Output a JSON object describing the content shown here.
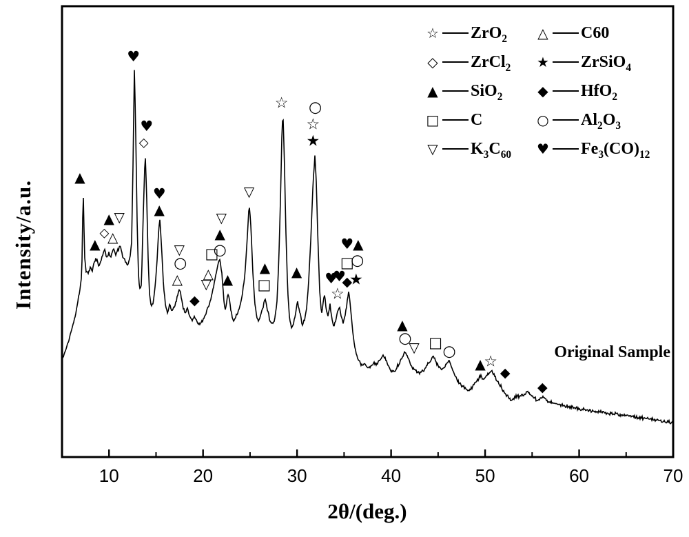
{
  "figure": {
    "background": "#ffffff",
    "line_color": "#000000",
    "annotation": "Original Sample",
    "xlabel": "2θ/(deg.)",
    "ylabel": "Intensity/a.u."
  },
  "chart_data": {
    "type": "line",
    "title": "",
    "xlabel": "2θ/(deg.)",
    "ylabel": "Intensity/a.u.",
    "annotation": "Original Sample",
    "xlim": [
      5,
      70
    ],
    "ylim": [
      0,
      654
    ],
    "x_ticks_major": [
      10,
      20,
      30,
      40,
      50,
      60,
      70
    ],
    "x_ticks_minor": [
      15,
      25,
      35,
      45,
      55,
      65
    ],
    "grid": false,
    "legend_position": "top-right-inside",
    "line_color": "#000000",
    "symbols": {
      "open-star": "☆",
      "filled-star": "★",
      "open-diamond": "◇",
      "filled-diamond": "◆",
      "filled-triangle-up": "▲",
      "open-triangle-up": "△",
      "open-triangle-down": "▽",
      "open-square": "□",
      "open-circle": "○",
      "filled-heart": "♥"
    },
    "legend": [
      {
        "symbol": "open-star",
        "label": "ZrO_2"
      },
      {
        "symbol": "open-triangle-up",
        "label": "C60"
      },
      {
        "symbol": "open-diamond",
        "label": "ZrCl_2"
      },
      {
        "symbol": "filled-star",
        "label": "ZrSiO_4"
      },
      {
        "symbol": "filled-triangle-up",
        "label": "SiO_2"
      },
      {
        "symbol": "filled-diamond",
        "label": "HfO_2"
      },
      {
        "symbol": "open-square",
        "label": "C"
      },
      {
        "symbol": "open-circle",
        "label": "Al_2O_3"
      },
      {
        "symbol": "open-triangle-down",
        "label": "K_3C_60"
      },
      {
        "symbol": "filled-heart",
        "label": "Fe_3(CO)_12"
      }
    ],
    "peak_markers": [
      {
        "symbol": "filled-triangle-up",
        "x": 6.9,
        "y": 406
      },
      {
        "symbol": "filled-triangle-up",
        "x": 8.5,
        "y": 309
      },
      {
        "symbol": "open-diamond",
        "x": 9.5,
        "y": 325
      },
      {
        "symbol": "filled-triangle-up",
        "x": 10.0,
        "y": 346
      },
      {
        "symbol": "open-triangle-up",
        "x": 10.4,
        "y": 319
      },
      {
        "symbol": "open-triangle-down",
        "x": 11.1,
        "y": 348
      },
      {
        "symbol": "filled-heart",
        "x": 12.6,
        "y": 581
      },
      {
        "symbol": "open-diamond",
        "x": 13.7,
        "y": 456
      },
      {
        "symbol": "filled-heart",
        "x": 14.0,
        "y": 480
      },
      {
        "symbol": "filled-heart",
        "x": 15.35,
        "y": 382
      },
      {
        "symbol": "filled-triangle-up",
        "x": 15.35,
        "y": 359
      },
      {
        "symbol": "open-triangle-up",
        "x": 17.26,
        "y": 258
      },
      {
        "symbol": "open-triangle-down",
        "x": 17.48,
        "y": 301
      },
      {
        "symbol": "open-circle",
        "x": 17.58,
        "y": 281
      },
      {
        "symbol": "filled-diamond",
        "x": 19.1,
        "y": 227
      },
      {
        "symbol": "open-triangle-down",
        "x": 20.34,
        "y": 251
      },
      {
        "symbol": "open-triangle-up",
        "x": 20.56,
        "y": 266
      },
      {
        "symbol": "open-square",
        "x": 20.93,
        "y": 295
      },
      {
        "symbol": "open-circle",
        "x": 21.8,
        "y": 300
      },
      {
        "symbol": "filled-triangle-up",
        "x": 21.8,
        "y": 324
      },
      {
        "symbol": "open-triangle-down",
        "x": 21.95,
        "y": 347
      },
      {
        "symbol": "filled-triangle-up",
        "x": 22.62,
        "y": 258
      },
      {
        "symbol": "open-triangle-down",
        "x": 24.9,
        "y": 385
      },
      {
        "symbol": "filled-triangle-up",
        "x": 26.58,
        "y": 275
      },
      {
        "symbol": "open-square",
        "x": 26.5,
        "y": 250
      },
      {
        "symbol": "open-star",
        "x": 28.35,
        "y": 513
      },
      {
        "symbol": "filled-triangle-up",
        "x": 29.96,
        "y": 269
      },
      {
        "symbol": "open-circle",
        "x": 31.94,
        "y": 507
      },
      {
        "symbol": "open-star",
        "x": 31.7,
        "y": 482
      },
      {
        "symbol": "filled-star",
        "x": 31.7,
        "y": 458
      },
      {
        "symbol": "filled-heart",
        "x": 33.63,
        "y": 259
      },
      {
        "symbol": "filled-heart",
        "x": 34.5,
        "y": 262
      },
      {
        "symbol": "open-star",
        "x": 34.3,
        "y": 236
      },
      {
        "symbol": "filled-diamond",
        "x": 35.32,
        "y": 254
      },
      {
        "symbol": "filled-star",
        "x": 36.28,
        "y": 257
      },
      {
        "symbol": "filled-heart",
        "x": 35.32,
        "y": 309
      },
      {
        "symbol": "filled-triangle-up",
        "x": 36.5,
        "y": 309
      },
      {
        "symbol": "open-square",
        "x": 35.32,
        "y": 282
      },
      {
        "symbol": "open-circle",
        "x": 36.42,
        "y": 285
      },
      {
        "symbol": "filled-triangle-up",
        "x": 41.2,
        "y": 192
      },
      {
        "symbol": "open-circle",
        "x": 41.49,
        "y": 172
      },
      {
        "symbol": "open-triangle-down",
        "x": 42.45,
        "y": 159
      },
      {
        "symbol": "open-square",
        "x": 44.72,
        "y": 166
      },
      {
        "symbol": "open-circle",
        "x": 46.19,
        "y": 153
      },
      {
        "symbol": "filled-triangle-up",
        "x": 49.49,
        "y": 135
      },
      {
        "symbol": "open-star",
        "x": 50.59,
        "y": 138
      },
      {
        "symbol": "filled-diamond",
        "x": 52.13,
        "y": 122
      },
      {
        "symbol": "filled-diamond",
        "x": 56.1,
        "y": 101
      }
    ],
    "curve_points": [
      [
        5.0,
        140
      ],
      [
        5.3,
        152
      ],
      [
        5.6,
        164
      ],
      [
        5.9,
        179
      ],
      [
        6.2,
        194
      ],
      [
        6.5,
        212
      ],
      [
        6.8,
        234
      ],
      [
        7.0,
        254
      ],
      [
        7.1,
        264
      ],
      [
        7.25,
        390
      ],
      [
        7.4,
        292
      ],
      [
        7.55,
        270
      ],
      [
        7.8,
        266
      ],
      [
        8.0,
        274
      ],
      [
        8.2,
        270
      ],
      [
        8.45,
        284
      ],
      [
        8.7,
        288
      ],
      [
        8.9,
        276
      ],
      [
        9.1,
        284
      ],
      [
        9.35,
        294
      ],
      [
        9.55,
        302
      ],
      [
        9.75,
        288
      ],
      [
        10.0,
        296
      ],
      [
        10.2,
        290
      ],
      [
        10.45,
        304
      ],
      [
        10.7,
        294
      ],
      [
        10.95,
        300
      ],
      [
        11.2,
        306
      ],
      [
        11.45,
        292
      ],
      [
        11.7,
        285
      ],
      [
        11.95,
        279
      ],
      [
        12.2,
        287
      ],
      [
        12.4,
        310
      ],
      [
        12.55,
        422
      ],
      [
        12.7,
        567
      ],
      [
        12.85,
        462
      ],
      [
        13.0,
        332
      ],
      [
        13.15,
        257
      ],
      [
        13.3,
        242
      ],
      [
        13.45,
        250
      ],
      [
        13.6,
        332
      ],
      [
        13.75,
        402
      ],
      [
        13.85,
        439
      ],
      [
        14.0,
        382
      ],
      [
        14.15,
        292
      ],
      [
        14.3,
        237
      ],
      [
        14.5,
        220
      ],
      [
        14.7,
        224
      ],
      [
        14.9,
        247
      ],
      [
        15.1,
        282
      ],
      [
        15.25,
        322
      ],
      [
        15.4,
        346
      ],
      [
        15.6,
        302
      ],
      [
        15.8,
        247
      ],
      [
        16.0,
        222
      ],
      [
        16.2,
        210
      ],
      [
        16.45,
        220
      ],
      [
        16.7,
        212
      ],
      [
        16.9,
        218
      ],
      [
        17.1,
        224
      ],
      [
        17.3,
        234
      ],
      [
        17.5,
        246
      ],
      [
        17.7,
        230
      ],
      [
        17.9,
        216
      ],
      [
        18.1,
        210
      ],
      [
        18.35,
        216
      ],
      [
        18.6,
        204
      ],
      [
        18.85,
        198
      ],
      [
        19.1,
        204
      ],
      [
        19.35,
        196
      ],
      [
        19.6,
        192
      ],
      [
        19.85,
        196
      ],
      [
        20.1,
        200
      ],
      [
        20.35,
        210
      ],
      [
        20.6,
        218
      ],
      [
        20.85,
        232
      ],
      [
        21.1,
        247
      ],
      [
        21.35,
        264
      ],
      [
        21.6,
        280
      ],
      [
        21.8,
        286
      ],
      [
        22.0,
        266
      ],
      [
        22.2,
        232
      ],
      [
        22.35,
        212
      ],
      [
        22.5,
        222
      ],
      [
        22.65,
        237
      ],
      [
        22.8,
        230
      ],
      [
        23.0,
        210
      ],
      [
        23.2,
        197
      ],
      [
        23.45,
        202
      ],
      [
        23.7,
        210
      ],
      [
        23.95,
        220
      ],
      [
        24.2,
        237
      ],
      [
        24.45,
        264
      ],
      [
        24.7,
        317
      ],
      [
        24.9,
        367
      ],
      [
        25.1,
        332
      ],
      [
        25.3,
        267
      ],
      [
        25.5,
        224
      ],
      [
        25.7,
        204
      ],
      [
        25.9,
        198
      ],
      [
        26.1,
        206
      ],
      [
        26.35,
        216
      ],
      [
        26.6,
        230
      ],
      [
        26.85,
        214
      ],
      [
        27.1,
        198
      ],
      [
        27.35,
        192
      ],
      [
        27.6,
        200
      ],
      [
        27.85,
        222
      ],
      [
        28.05,
        282
      ],
      [
        28.25,
        382
      ],
      [
        28.4,
        477
      ],
      [
        28.5,
        499
      ],
      [
        28.65,
        432
      ],
      [
        28.8,
        332
      ],
      [
        29.0,
        242
      ],
      [
        29.2,
        200
      ],
      [
        29.4,
        186
      ],
      [
        29.6,
        192
      ],
      [
        29.8,
        204
      ],
      [
        30.05,
        226
      ],
      [
        30.3,
        210
      ],
      [
        30.55,
        192
      ],
      [
        30.8,
        200
      ],
      [
        31.0,
        214
      ],
      [
        31.2,
        247
      ],
      [
        31.45,
        312
      ],
      [
        31.7,
        397
      ],
      [
        31.9,
        438
      ],
      [
        32.05,
        397
      ],
      [
        32.2,
        322
      ],
      [
        32.4,
        242
      ],
      [
        32.6,
        207
      ],
      [
        32.8,
        227
      ],
      [
        32.95,
        234
      ],
      [
        33.1,
        214
      ],
      [
        33.3,
        204
      ],
      [
        33.5,
        224
      ],
      [
        33.7,
        200
      ],
      [
        33.9,
        190
      ],
      [
        34.1,
        198
      ],
      [
        34.3,
        210
      ],
      [
        34.5,
        218
      ],
      [
        34.7,
        204
      ],
      [
        34.9,
        194
      ],
      [
        35.1,
        204
      ],
      [
        35.3,
        222
      ],
      [
        35.5,
        240
      ],
      [
        35.7,
        217
      ],
      [
        35.9,
        184
      ],
      [
        36.1,
        162
      ],
      [
        36.35,
        147
      ],
      [
        36.6,
        139
      ],
      [
        36.9,
        132
      ],
      [
        37.2,
        135
      ],
      [
        37.5,
        129
      ],
      [
        37.8,
        132
      ],
      [
        38.1,
        136
      ],
      [
        38.4,
        134
      ],
      [
        38.7,
        140
      ],
      [
        39.0,
        144
      ],
      [
        39.2,
        147
      ],
      [
        39.45,
        140
      ],
      [
        39.7,
        132
      ],
      [
        40.0,
        126
      ],
      [
        40.3,
        124
      ],
      [
        40.6,
        130
      ],
      [
        40.9,
        138
      ],
      [
        41.2,
        146
      ],
      [
        41.5,
        153
      ],
      [
        41.8,
        144
      ],
      [
        42.1,
        134
      ],
      [
        42.4,
        128
      ],
      [
        42.7,
        124
      ],
      [
        43.0,
        122
      ],
      [
        43.3,
        125
      ],
      [
        43.6,
        128
      ],
      [
        43.9,
        134
      ],
      [
        44.2,
        140
      ],
      [
        44.5,
        147
      ],
      [
        44.8,
        138
      ],
      [
        45.1,
        130
      ],
      [
        45.4,
        127
      ],
      [
        45.7,
        132
      ],
      [
        46.0,
        137
      ],
      [
        46.2,
        141
      ],
      [
        46.5,
        127
      ],
      [
        46.8,
        116
      ],
      [
        47.1,
        110
      ],
      [
        47.4,
        106
      ],
      [
        47.7,
        102
      ],
      [
        48.0,
        99
      ],
      [
        48.3,
        96
      ],
      [
        48.6,
        100
      ],
      [
        48.9,
        106
      ],
      [
        49.2,
        112
      ],
      [
        49.5,
        117
      ],
      [
        49.8,
        113
      ],
      [
        50.1,
        117
      ],
      [
        50.4,
        121
      ],
      [
        50.7,
        126
      ],
      [
        51.0,
        118
      ],
      [
        51.3,
        110
      ],
      [
        51.6,
        104
      ],
      [
        51.9,
        98
      ],
      [
        52.2,
        92
      ],
      [
        52.5,
        86
      ],
      [
        52.8,
        82
      ],
      [
        53.1,
        85
      ],
      [
        53.4,
        89
      ],
      [
        53.7,
        88
      ],
      [
        54.0,
        90
      ],
      [
        54.3,
        92
      ],
      [
        54.6,
        95
      ],
      [
        54.9,
        91
      ],
      [
        55.2,
        86
      ],
      [
        55.5,
        83
      ],
      [
        55.8,
        85
      ],
      [
        56.1,
        88
      ],
      [
        56.4,
        84
      ],
      [
        56.7,
        81
      ],
      [
        57.0,
        80
      ],
      [
        57.4,
        78
      ],
      [
        57.8,
        77
      ],
      [
        58.2,
        76
      ],
      [
        58.6,
        74
      ],
      [
        59.0,
        73
      ],
      [
        59.5,
        72
      ],
      [
        60.0,
        70
      ],
      [
        60.5,
        69
      ],
      [
        61.0,
        68
      ],
      [
        61.5,
        67
      ],
      [
        62.0,
        66
      ],
      [
        62.5,
        65
      ],
      [
        63.0,
        64
      ],
      [
        63.5,
        63
      ],
      [
        64.0,
        62
      ],
      [
        64.5,
        61
      ],
      [
        65.0,
        60
      ],
      [
        65.5,
        59
      ],
      [
        66.0,
        58
      ],
      [
        66.5,
        57
      ],
      [
        67.0,
        56
      ],
      [
        67.5,
        55
      ],
      [
        68.0,
        54
      ],
      [
        68.5,
        53
      ],
      [
        69.0,
        52
      ],
      [
        69.5,
        51
      ],
      [
        70.0,
        51
      ]
    ]
  }
}
